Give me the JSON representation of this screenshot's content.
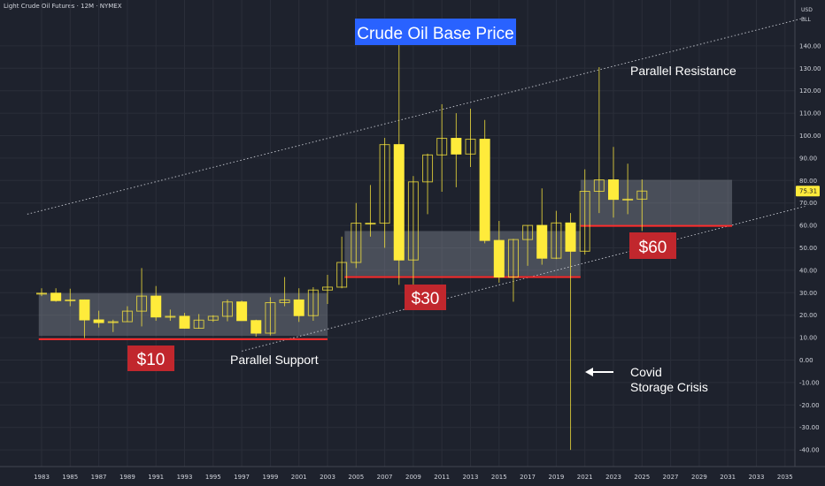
{
  "header": {
    "symbol_title": "Light Crude Oil Futures · 12M · NYMEX"
  },
  "price_scale": {
    "currency": "USD",
    "unit": "BLL",
    "last_price": "75.31"
  },
  "colors": {
    "background": "#1e222d",
    "grid": "#2a2e39",
    "bull_body": "#ffeb3b",
    "bear_body": "#1e222d",
    "candle_border": "#ffeb3b",
    "support_line": "#ff2d2d",
    "range_box": "#9aa0ab",
    "label_red": "#c1272d",
    "label_blue": "#2962ff",
    "last_price_tag": "#ffeb3b"
  },
  "chart_data": {
    "type": "candlestick",
    "title": "Crude Oil Base Price",
    "x_ticks": [
      "1983",
      "1985",
      "1987",
      "1989",
      "1991",
      "1993",
      "1995",
      "1997",
      "1999",
      "2001",
      "2003",
      "2005",
      "2007",
      "2009",
      "2011",
      "2013",
      "2015",
      "2017",
      "2019",
      "2021",
      "2023",
      "2025",
      "2027",
      "2029",
      "2031",
      "2033",
      "2035"
    ],
    "y_ticks": [
      "140.00",
      "130.00",
      "120.00",
      "110.00",
      "100.00",
      "90.00",
      "80.00",
      "70.00",
      "60.00",
      "50.00",
      "40.00",
      "30.00",
      "20.00",
      "10.00",
      "0.00",
      "-10.00",
      "-20.00",
      "-30.00",
      "-40.00"
    ],
    "ylim": [
      -42,
      147
    ],
    "xlim": [
      1982,
      2036
    ],
    "candles": [
      {
        "year": 1983,
        "o": 29.6,
        "h": 32.0,
        "l": 28.5,
        "c": 29.8
      },
      {
        "year": 1984,
        "o": 29.8,
        "h": 32.0,
        "l": 26.0,
        "c": 26.5
      },
      {
        "year": 1985,
        "o": 26.5,
        "h": 31.8,
        "l": 24.0,
        "c": 26.8
      },
      {
        "year": 1986,
        "o": 26.8,
        "h": 27.0,
        "l": 9.8,
        "c": 17.9
      },
      {
        "year": 1987,
        "o": 17.9,
        "h": 22.0,
        "l": 14.5,
        "c": 16.7
      },
      {
        "year": 1988,
        "o": 16.7,
        "h": 18.0,
        "l": 12.5,
        "c": 17.1
      },
      {
        "year": 1989,
        "o": 17.1,
        "h": 24.0,
        "l": 17.0,
        "c": 21.8
      },
      {
        "year": 1990,
        "o": 21.8,
        "h": 41.0,
        "l": 15.0,
        "c": 28.5
      },
      {
        "year": 1991,
        "o": 28.5,
        "h": 33.0,
        "l": 17.5,
        "c": 19.2
      },
      {
        "year": 1992,
        "o": 19.2,
        "h": 22.5,
        "l": 17.5,
        "c": 19.5
      },
      {
        "year": 1993,
        "o": 19.5,
        "h": 21.0,
        "l": 14.0,
        "c": 14.2
      },
      {
        "year": 1994,
        "o": 14.2,
        "h": 20.5,
        "l": 14.0,
        "c": 17.8
      },
      {
        "year": 1995,
        "o": 17.8,
        "h": 20.0,
        "l": 17.0,
        "c": 19.5
      },
      {
        "year": 1996,
        "o": 19.5,
        "h": 27.0,
        "l": 17.3,
        "c": 25.9
      },
      {
        "year": 1997,
        "o": 25.9,
        "h": 26.5,
        "l": 17.5,
        "c": 17.6
      },
      {
        "year": 1998,
        "o": 17.6,
        "h": 18.0,
        "l": 10.5,
        "c": 12.0
      },
      {
        "year": 1999,
        "o": 12.0,
        "h": 28.0,
        "l": 11.0,
        "c": 25.6
      },
      {
        "year": 2000,
        "o": 25.6,
        "h": 37.0,
        "l": 24.0,
        "c": 26.8
      },
      {
        "year": 2001,
        "o": 26.8,
        "h": 32.0,
        "l": 17.0,
        "c": 19.8
      },
      {
        "year": 2002,
        "o": 19.8,
        "h": 32.5,
        "l": 17.5,
        "c": 31.2
      },
      {
        "year": 2003,
        "o": 31.2,
        "h": 38.0,
        "l": 25.0,
        "c": 32.5
      },
      {
        "year": 2004,
        "o": 32.5,
        "h": 55.0,
        "l": 32.0,
        "c": 43.5
      },
      {
        "year": 2005,
        "o": 43.5,
        "h": 70.0,
        "l": 41.0,
        "c": 61.0
      },
      {
        "year": 2006,
        "o": 61.0,
        "h": 78.0,
        "l": 55.0,
        "c": 61.0
      },
      {
        "year": 2007,
        "o": 61.0,
        "h": 99.0,
        "l": 50.0,
        "c": 96.0
      },
      {
        "year": 2008,
        "o": 96.0,
        "h": 147.0,
        "l": 33.5,
        "c": 44.6
      },
      {
        "year": 2009,
        "o": 44.6,
        "h": 82.0,
        "l": 33.5,
        "c": 79.4
      },
      {
        "year": 2010,
        "o": 79.4,
        "h": 92.0,
        "l": 65.0,
        "c": 91.4
      },
      {
        "year": 2011,
        "o": 91.4,
        "h": 114.0,
        "l": 75.0,
        "c": 98.8
      },
      {
        "year": 2012,
        "o": 98.8,
        "h": 110.0,
        "l": 77.0,
        "c": 91.8
      },
      {
        "year": 2013,
        "o": 91.8,
        "h": 112.0,
        "l": 86.0,
        "c": 98.4
      },
      {
        "year": 2014,
        "o": 98.4,
        "h": 107.0,
        "l": 52.0,
        "c": 53.3
      },
      {
        "year": 2015,
        "o": 53.3,
        "h": 62.0,
        "l": 34.5,
        "c": 37.0
      },
      {
        "year": 2016,
        "o": 37.0,
        "h": 54.0,
        "l": 26.0,
        "c": 53.7
      },
      {
        "year": 2017,
        "o": 53.7,
        "h": 60.0,
        "l": 42.0,
        "c": 60.0
      },
      {
        "year": 2018,
        "o": 60.0,
        "h": 76.5,
        "l": 42.5,
        "c": 45.4
      },
      {
        "year": 2019,
        "o": 45.4,
        "h": 66.5,
        "l": 45.0,
        "c": 61.1
      },
      {
        "year": 2020,
        "o": 61.1,
        "h": 65.5,
        "l": -40.0,
        "c": 48.5
      },
      {
        "year": 2021,
        "o": 48.5,
        "h": 85.0,
        "l": 47.0,
        "c": 75.2
      },
      {
        "year": 2022,
        "o": 75.2,
        "h": 130.5,
        "l": 65.5,
        "c": 80.3
      },
      {
        "year": 2023,
        "o": 80.3,
        "h": 95.0,
        "l": 63.5,
        "c": 71.6
      },
      {
        "year": 2024,
        "o": 71.6,
        "h": 87.5,
        "l": 65.0,
        "c": 71.7
      },
      {
        "year": 2025,
        "o": 71.7,
        "h": 80.5,
        "l": 57.5,
        "c": 75.3
      }
    ],
    "range_boxes": [
      {
        "x0": 1982.8,
        "x1": 2003.0,
        "y0": 10.8,
        "y1": 29.8
      },
      {
        "x0": 2004.2,
        "x1": 2020.7,
        "y0": 37.5,
        "y1": 57.5
      },
      {
        "x0": 2020.7,
        "x1": 2031.3,
        "y0": 60.0,
        "y1": 80.3
      }
    ],
    "support_lines": [
      {
        "x0": 1982.8,
        "x1": 2003.0,
        "y": 9.3
      },
      {
        "x0": 2004.2,
        "x1": 2020.7,
        "y": 37.0
      },
      {
        "x0": 2020.7,
        "x1": 2031.3,
        "y": 59.8
      }
    ],
    "trend_lines": [
      {
        "x0": 1982.0,
        "y0": 65.0,
        "x1": 2036.4,
        "y1": 152.5
      },
      {
        "x0": 1997.0,
        "y0": 4.0,
        "x1": 2036.4,
        "y1": 68.5
      }
    ],
    "annotations": {
      "base_price_title": "Crude Oil Base Price",
      "parallel_resistance": "Parallel Resistance",
      "parallel_support": "Parallel Support",
      "covid_line1": "Covid",
      "covid_line2": "Storage Crisis",
      "label_10": "$10",
      "label_30": "$30",
      "label_60": "$60"
    }
  }
}
